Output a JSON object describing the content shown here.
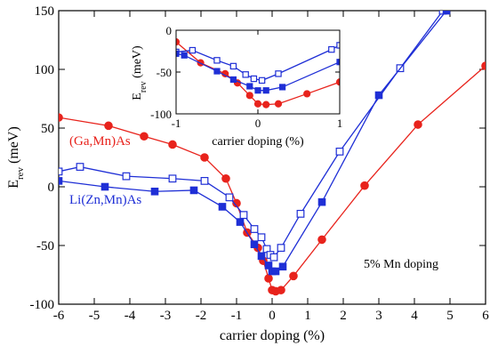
{
  "chart_data": [
    {
      "type": "line",
      "xlabel": "carrier doping (%)",
      "ylabel_main": "E",
      "ylabel_sub": "rev",
      "ylabel_unit": " (meV)",
      "xlim": [
        -6,
        6
      ],
      "ylim": [
        -100,
        150
      ],
      "xticks": [
        -6,
        -5,
        -4,
        -3,
        -2,
        -1,
        0,
        1,
        2,
        3,
        4,
        5,
        6
      ],
      "yticks": [
        -100,
        -50,
        0,
        50,
        100,
        150
      ],
      "annotations": [
        {
          "text": "(Ga,Mn)As",
          "color": "#e8231c"
        },
        {
          "text": "Li(Zn,Mn)As",
          "color": "#1f2fd6"
        },
        {
          "text": "5% Mn doping",
          "color": "#000000"
        }
      ],
      "series": [
        {
          "name": "(Ga,Mn)As",
          "color": "#e8231c",
          "marker": "filled-circle",
          "x": [
            -6.0,
            -4.6,
            -3.6,
            -2.8,
            -1.9,
            -1.3,
            -1.0,
            -0.7,
            -0.4,
            -0.25,
            -0.1,
            0.0,
            0.1,
            0.25,
            0.6,
            1.4,
            2.6,
            4.1,
            6.0
          ],
          "y": [
            59,
            52,
            43,
            36,
            25,
            7,
            -14,
            -39,
            -52,
            -63,
            -78,
            -88,
            -89,
            -88,
            -76,
            -45,
            1,
            53,
            103
          ]
        },
        {
          "name": "Li(Zn,Mn)As open",
          "color": "#1f2fd6",
          "marker": "open-square",
          "x": [
            -6.0,
            -5.4,
            -4.1,
            -2.8,
            -1.9,
            -1.2,
            -0.8,
            -0.5,
            -0.3,
            -0.15,
            -0.05,
            0.05,
            0.25,
            0.8,
            1.9,
            3.6,
            4.8
          ],
          "y": [
            13,
            17,
            9,
            7,
            5,
            -9,
            -24,
            -36,
            -43,
            -53,
            -58,
            -60,
            -52,
            -23,
            30,
            101,
            150
          ]
        },
        {
          "name": "Li(Zn,Mn)As filled",
          "color": "#1f2fd6",
          "marker": "filled-square",
          "x": [
            -6.0,
            -4.7,
            -3.3,
            -2.2,
            -1.4,
            -0.9,
            -0.5,
            -0.3,
            -0.1,
            0.0,
            0.1,
            0.3,
            1.4,
            3.0,
            4.9
          ],
          "y": [
            5,
            0,
            -4,
            -3,
            -17,
            -30,
            -49,
            -59,
            -67,
            -72,
            -72,
            -68,
            -13,
            78,
            150
          ]
        }
      ]
    },
    {
      "type": "line",
      "inset": true,
      "xlabel": "carrier doping (%)",
      "ylabel_main": "E",
      "ylabel_sub": "rev",
      "ylabel_unit": " (meV)",
      "xlim": [
        -1,
        1
      ],
      "ylim": [
        -100,
        0
      ],
      "xticks": [
        -1,
        0,
        1
      ],
      "yticks": [
        -100,
        -50,
        0
      ],
      "series": [
        {
          "name": "(Ga,Mn)As",
          "color": "#e8231c",
          "marker": "filled-circle",
          "x": [
            -1.0,
            -0.7,
            -0.4,
            -0.25,
            -0.1,
            0.0,
            0.1,
            0.25,
            0.6,
            1.0
          ],
          "y": [
            -14,
            -39,
            -52,
            -63,
            -78,
            -88,
            -89,
            -88,
            -76,
            -62
          ]
        },
        {
          "name": "Li(Zn,Mn)As open",
          "color": "#1f2fd6",
          "marker": "open-square",
          "x": [
            -1.0,
            -0.8,
            -0.5,
            -0.3,
            -0.15,
            -0.05,
            0.05,
            0.25,
            0.9,
            1.0
          ],
          "y": [
            -26,
            -24,
            -36,
            -43,
            -53,
            -58,
            -60,
            -52,
            -23,
            -18
          ]
        },
        {
          "name": "Li(Zn,Mn)As filled",
          "color": "#1f2fd6",
          "marker": "filled-square",
          "x": [
            -1.0,
            -0.9,
            -0.5,
            -0.3,
            -0.1,
            0.0,
            0.1,
            0.3,
            1.0
          ],
          "y": [
            -28,
            -30,
            -49,
            -59,
            -67,
            -72,
            -72,
            -68,
            -38
          ]
        }
      ]
    }
  ]
}
